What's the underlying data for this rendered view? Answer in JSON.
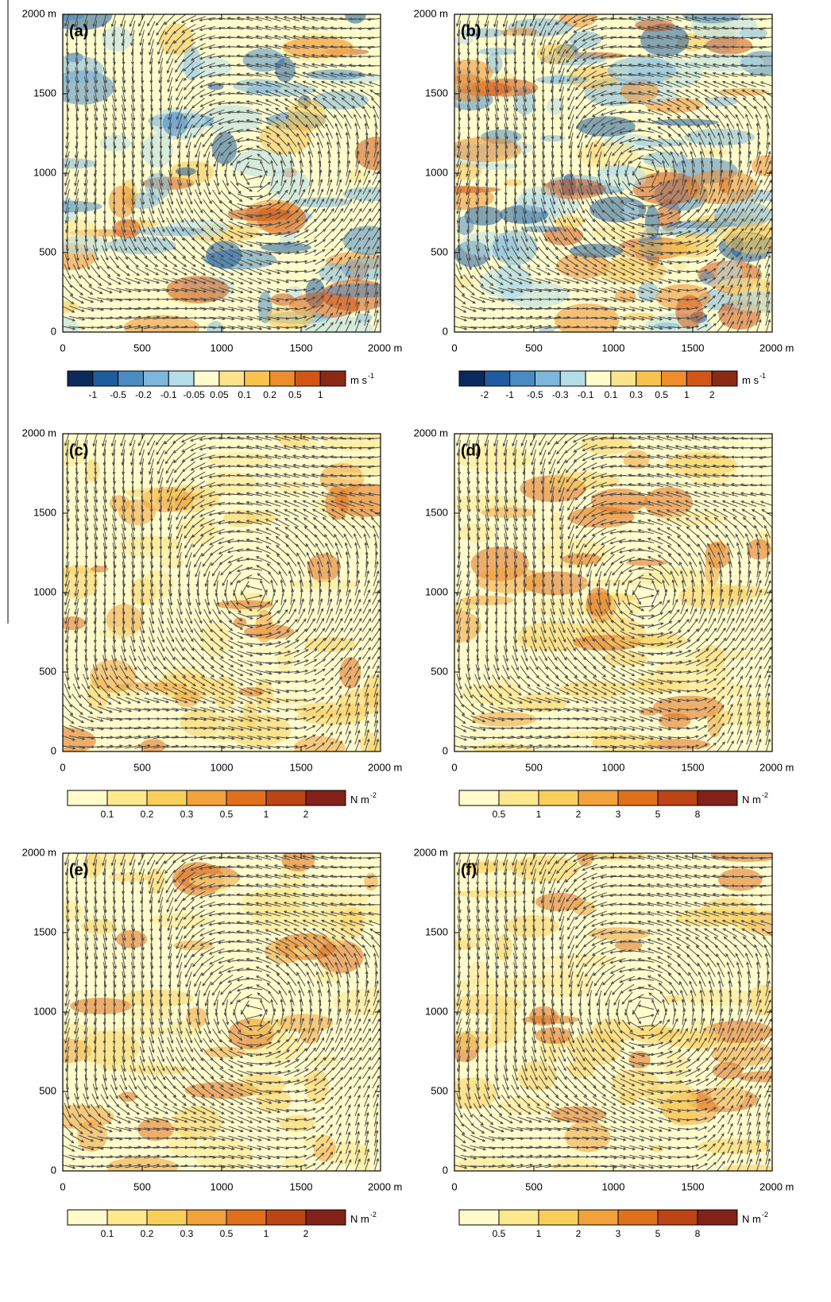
{
  "chart_data": [
    {
      "type": "vector-field",
      "label": "(a)",
      "xlim": [
        0,
        2000
      ],
      "ylim": [
        0,
        2000
      ],
      "xticks": [
        0,
        500,
        1000,
        1500,
        {
          "value": 2000,
          "label": "2000 m"
        }
      ],
      "yticks": [
        0,
        500,
        1000,
        1500,
        {
          "value": 2000,
          "label": "2000 m"
        }
      ],
      "colorbar": {
        "levels": [
          "-1",
          "-0.5",
          "-0.2",
          "-0.1",
          "-0.05",
          "0.05",
          "0.1",
          "0.2",
          "0.5",
          "1"
        ],
        "colors": [
          "#0b2a5c",
          "#1d5c9e",
          "#4a8bc4",
          "#7eb6dc",
          "#b4dde8",
          "#fffccb",
          "#fde48c",
          "#f8c24e",
          "#ef8d2c",
          "#d25516",
          "#8a2a14"
        ],
        "units": "m s",
        "units_exponent": "-1"
      }
    },
    {
      "type": "vector-field",
      "label": "(b)",
      "xlim": [
        0,
        2000
      ],
      "ylim": [
        0,
        2000
      ],
      "xticks": [
        0,
        500,
        1000,
        1500,
        {
          "value": 2000,
          "label": "2000 m"
        }
      ],
      "yticks": [
        0,
        500,
        1000,
        1500,
        {
          "value": 2000,
          "label": "2000 m"
        }
      ],
      "colorbar": {
        "levels": [
          "-2",
          "-1",
          "-0.5",
          "-0.3",
          "-0.1",
          "0.1",
          "0.3",
          "0.5",
          "1",
          "2"
        ],
        "colors": [
          "#0b2a5c",
          "#1d5c9e",
          "#4a8bc4",
          "#7eb6dc",
          "#b4dde8",
          "#fffccb",
          "#fde48c",
          "#f8c24e",
          "#ef8d2c",
          "#d25516",
          "#8a2a14"
        ],
        "units": "m s",
        "units_exponent": "-1"
      }
    },
    {
      "type": "vector-field",
      "label": "(c)",
      "xlim": [
        0,
        2000
      ],
      "ylim": [
        0,
        2000
      ],
      "xticks": [
        0,
        500,
        1000,
        1500,
        {
          "value": 2000,
          "label": "2000 m"
        }
      ],
      "yticks": [
        0,
        500,
        1000,
        1500,
        {
          "value": 2000,
          "label": "2000 m"
        }
      ],
      "colorbar": {
        "levels": [
          "0.1",
          "0.2",
          "0.3",
          "0.5",
          "1",
          "2"
        ],
        "colors": [
          "#fffbcb",
          "#fde88e",
          "#f9cf5c",
          "#f1a23a",
          "#e0701c",
          "#bd4414",
          "#82221a"
        ],
        "units": "N m",
        "units_exponent": "-2"
      }
    },
    {
      "type": "vector-field",
      "label": "(d)",
      "xlim": [
        0,
        2000
      ],
      "ylim": [
        0,
        2000
      ],
      "xticks": [
        0,
        500,
        1000,
        1500,
        {
          "value": 2000,
          "label": "2000 m"
        }
      ],
      "yticks": [
        0,
        500,
        1000,
        1500,
        {
          "value": 2000,
          "label": "2000 m"
        }
      ],
      "colorbar": {
        "levels": [
          "0.5",
          "1",
          "2",
          "3",
          "5",
          "8"
        ],
        "colors": [
          "#fffbcb",
          "#fde88e",
          "#f9cf5c",
          "#f1a23a",
          "#e0701c",
          "#bd4414",
          "#82221a"
        ],
        "units": "N m",
        "units_exponent": "-2"
      }
    },
    {
      "type": "vector-field",
      "label": "(e)",
      "xlim": [
        0,
        2000
      ],
      "ylim": [
        0,
        2000
      ],
      "xticks": [
        0,
        500,
        1000,
        1500,
        {
          "value": 2000,
          "label": "2000 m"
        }
      ],
      "yticks": [
        0,
        500,
        1000,
        1500,
        {
          "value": 2000,
          "label": "2000 m"
        }
      ],
      "colorbar": {
        "levels": [
          "0.1",
          "0.2",
          "0.3",
          "0.5",
          "1",
          "2"
        ],
        "colors": [
          "#fffbcb",
          "#fde88e",
          "#f9cf5c",
          "#f1a23a",
          "#e0701c",
          "#bd4414",
          "#82221a"
        ],
        "units": "N m",
        "units_exponent": "-2"
      }
    },
    {
      "type": "vector-field",
      "label": "(f)",
      "xlim": [
        0,
        2000
      ],
      "ylim": [
        0,
        2000
      ],
      "xticks": [
        0,
        500,
        1000,
        1500,
        {
          "value": 2000,
          "label": "2000 m"
        }
      ],
      "yticks": [
        0,
        500,
        1000,
        1500,
        {
          "value": 2000,
          "label": "2000 m"
        }
      ],
      "colorbar": {
        "levels": [
          "0.5",
          "1",
          "2",
          "3",
          "5",
          "8"
        ],
        "colors": [
          "#fffbcb",
          "#fde88e",
          "#f9cf5c",
          "#f1a23a",
          "#e0701c",
          "#bd4414",
          "#82221a"
        ],
        "units": "N m",
        "units_exponent": "-2"
      }
    }
  ]
}
